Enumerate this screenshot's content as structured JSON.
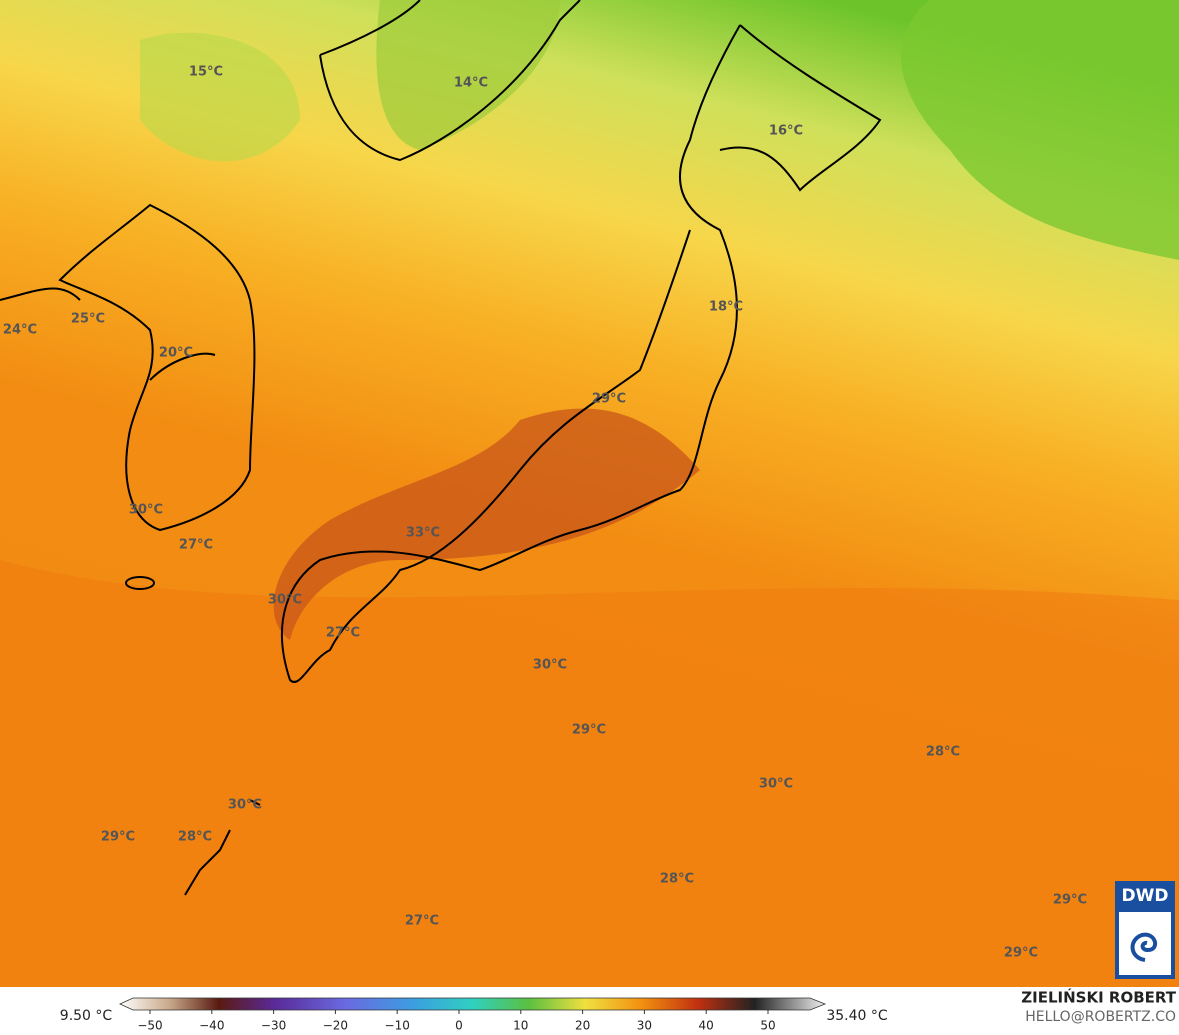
{
  "map": {
    "labels": [
      "15°C",
      "14°C",
      "16°C",
      "24°C",
      "25°C",
      "18°C",
      "20°C",
      "29°C",
      "30°C",
      "27°C",
      "33°C",
      "30°C",
      "27°C",
      "30°C",
      "29°C",
      "28°C",
      "30°C",
      "30°C",
      "29°C",
      "28°C",
      "28°C",
      "27°C",
      "29°C",
      "29°C"
    ]
  },
  "legend": {
    "min": "9.50 °C",
    "max": "35.40 °C",
    "ticks": [
      "−50",
      "−40",
      "−30",
      "−20",
      "−10",
      "0",
      "10",
      "20",
      "30",
      "40",
      "50"
    ]
  },
  "credit": {
    "author": "ZIELIŃSKI ROBERT",
    "contact": "HELLO@ROBERTZ.CO",
    "logo": "DWD"
  }
}
